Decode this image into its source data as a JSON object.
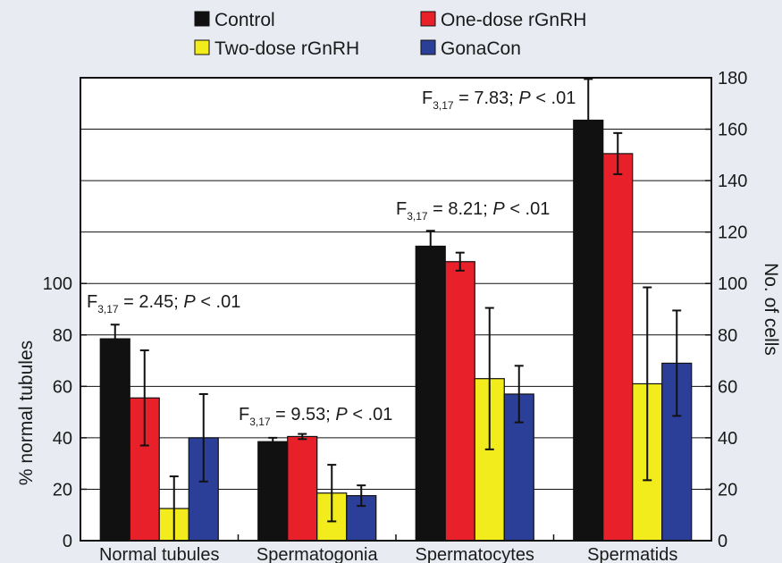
{
  "chart_data": {
    "type": "bar",
    "categories": [
      "Normal tubules",
      "Spermatogonia",
      "Spermatocytes",
      "Spermatids"
    ],
    "series": [
      {
        "name": "Control",
        "color": "#111111",
        "values": [
          78.5,
          38.5,
          114.5,
          163.5
        ],
        "errors": [
          5.5,
          1.5,
          6.0,
          16.0
        ]
      },
      {
        "name": "One-dose rGnRH",
        "color": "#e8202a",
        "values": [
          55.5,
          40.5,
          108.5,
          150.5
        ],
        "errors": [
          18.5,
          1.0,
          3.5,
          8.0
        ]
      },
      {
        "name": "Two-dose rGnRH",
        "color": "#f2ec1d",
        "values": [
          12.5,
          18.5,
          63.0,
          61.0
        ],
        "errors": [
          12.5,
          11.0,
          27.5,
          37.5
        ]
      },
      {
        "name": "GonaCon",
        "color": "#2c3f98",
        "values": [
          40.0,
          17.5,
          57.0,
          69.0
        ],
        "errors": [
          17.0,
          4.0,
          11.0,
          20.5
        ]
      }
    ],
    "axes": {
      "left": {
        "label": "% normal tubules",
        "ticks": [
          0,
          20,
          40,
          60,
          80,
          100
        ],
        "range": [
          0,
          180
        ],
        "applies_to": [
          "Normal tubules"
        ]
      },
      "right": {
        "label": "No. of cells",
        "ticks": [
          0,
          20,
          40,
          60,
          80,
          100,
          120,
          140,
          160,
          180
        ],
        "range": [
          0,
          180
        ],
        "applies_to": [
          "Spermatogonia",
          "Spermatocytes",
          "Spermatids"
        ]
      }
    },
    "annotations": [
      {
        "category": "Normal tubules",
        "f_sub": "3,17",
        "f_value": "= 2.45;",
        "p_text": "< .01"
      },
      {
        "category": "Spermatogonia",
        "f_sub": "3,17",
        "f_value": "= 9.53;",
        "p_text": "< .01"
      },
      {
        "category": "Spermatocytes",
        "f_sub": "3,17",
        "f_value": "= 8.21;",
        "p_text": "< .01"
      },
      {
        "category": "Spermatids",
        "f_sub": "3,17",
        "f_value": "= 7.83;",
        "p_text": "< .01"
      }
    ],
    "grid": true,
    "legend_position": "top"
  }
}
